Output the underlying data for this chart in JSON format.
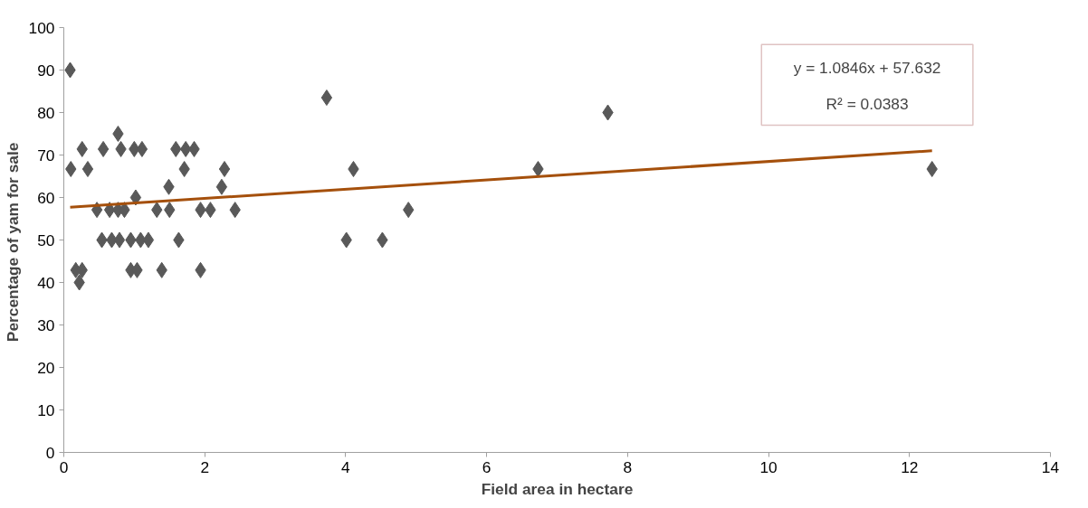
{
  "chart_data": {
    "type": "scatter",
    "xlabel": "Field area in hectare",
    "ylabel": "Percentage of yam  for sale",
    "xlim": [
      0,
      14
    ],
    "ylim": [
      0,
      100
    ],
    "xticks": [
      0,
      2,
      4,
      6,
      8,
      10,
      12,
      14
    ],
    "yticks": [
      0,
      10,
      20,
      30,
      40,
      50,
      60,
      70,
      80,
      90,
      100
    ],
    "marker": "diamond",
    "grid": false,
    "annotations": [
      "y = 1.0846x + 57.632",
      "R² = 0.0383"
    ],
    "series": [
      {
        "color": "#595959",
        "x": [
          0.09,
          0.26,
          0.56,
          0.81,
          1.0,
          1.11,
          1.59,
          1.73,
          1.85,
          0.77,
          0.1,
          0.34,
          1.71,
          2.28,
          1.49,
          2.24,
          1.02,
          0.47,
          0.65,
          0.77,
          0.86,
          1.32,
          1.5,
          1.94,
          2.08,
          2.43,
          0.54,
          0.68,
          0.79,
          0.95,
          1.09,
          1.2,
          1.63,
          0.17,
          0.26,
          0.95,
          1.04,
          1.39,
          1.94,
          0.22,
          3.73,
          4.11,
          4.89,
          4.01,
          4.52,
          6.73,
          7.72,
          12.32
        ],
        "values": [
          90,
          71.4,
          71.4,
          71.4,
          71.4,
          71.4,
          71.4,
          71.4,
          71.4,
          75,
          66.7,
          66.7,
          66.7,
          66.7,
          62.5,
          62.5,
          60,
          57.1,
          57.1,
          57.1,
          57.1,
          57.1,
          57.1,
          57.1,
          57.1,
          57.1,
          50,
          50,
          50,
          50,
          50,
          50,
          50,
          42.9,
          42.9,
          42.9,
          42.9,
          42.9,
          42.9,
          40,
          83.5,
          66.7,
          57.1,
          50,
          50,
          66.7,
          80,
          66.7
        ]
      },
      {
        "type": "line",
        "color": "#a5500c",
        "x": [
          0.09,
          12.32
        ],
        "values": [
          57.7,
          71.0
        ],
        "line_style": "solid",
        "marker": "none"
      }
    ]
  }
}
